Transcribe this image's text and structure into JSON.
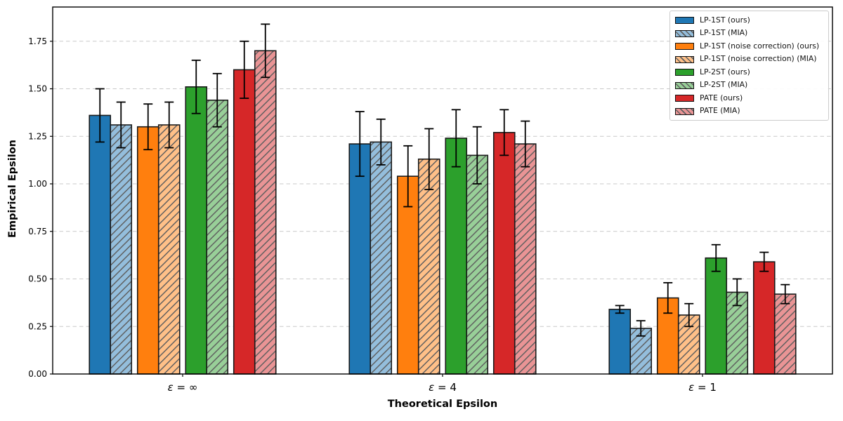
{
  "chart_data": {
    "type": "bar",
    "title": "",
    "xlabel": "Theoretical Epsilon",
    "ylabel": "Empirical Epsilon",
    "categories": [
      "ε = ∞",
      "ε = 4",
      "ε = 1"
    ],
    "ylim": [
      0,
      1.93
    ],
    "yticks": [
      0.0,
      0.25,
      0.5,
      0.75,
      1.0,
      1.25,
      1.5,
      1.75
    ],
    "grid": "horizontal-dashed",
    "grid_color": "#c9c9c9",
    "edge_color": "#1a1a1a",
    "hatch_color": "#5f5f5f",
    "errorbar_color": "#000000",
    "legend_position": "upper-right",
    "series": [
      {
        "name": "LP-1ST (ours)",
        "color": "#1f77b4",
        "hatch": false,
        "values": [
          1.36,
          1.21,
          0.34
        ],
        "errors": [
          0.14,
          0.17,
          0.02
        ]
      },
      {
        "name": "LP-1ST (MIA)",
        "color": "#94bedc",
        "hatch": true,
        "values": [
          1.31,
          1.22,
          0.24
        ],
        "errors": [
          0.12,
          0.12,
          0.04
        ]
      },
      {
        "name": "LP-1ST (noise correction) (ours)",
        "color": "#ff7f0e",
        "hatch": false,
        "values": [
          1.3,
          1.04,
          0.4
        ],
        "errors": [
          0.12,
          0.16,
          0.08
        ]
      },
      {
        "name": "LP-1ST (noise correction) (MIA)",
        "color": "#ffc088",
        "hatch": true,
        "values": [
          1.31,
          1.13,
          0.31
        ],
        "errors": [
          0.12,
          0.16,
          0.06
        ]
      },
      {
        "name": "LP-2ST (ours)",
        "color": "#2ca02c",
        "hatch": false,
        "values": [
          1.51,
          1.24,
          0.61
        ],
        "errors": [
          0.14,
          0.15,
          0.07
        ]
      },
      {
        "name": "LP-2ST (MIA)",
        "color": "#98cf98",
        "hatch": true,
        "values": [
          1.44,
          1.15,
          0.43
        ],
        "errors": [
          0.14,
          0.15,
          0.07
        ]
      },
      {
        "name": "PATE (ours)",
        "color": "#d62728",
        "hatch": false,
        "values": [
          1.6,
          1.27,
          0.59
        ],
        "errors": [
          0.15,
          0.12,
          0.05
        ]
      },
      {
        "name": "PATE (MIA)",
        "color": "#e99495",
        "hatch": true,
        "values": [
          1.7,
          1.21,
          0.42
        ],
        "errors": [
          0.14,
          0.12,
          0.05
        ]
      }
    ]
  }
}
